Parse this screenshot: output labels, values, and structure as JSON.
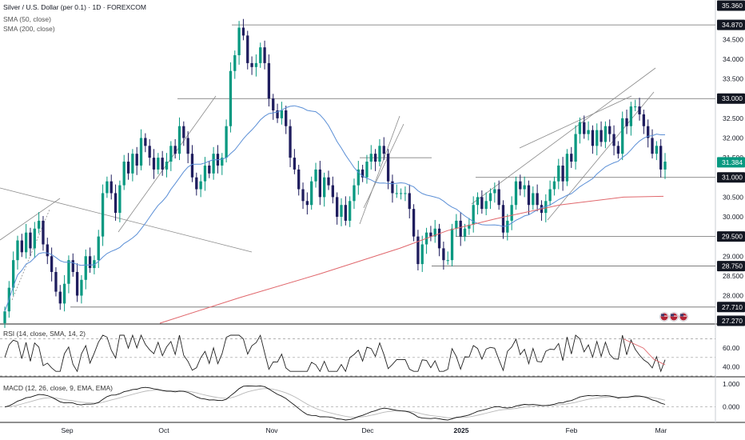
{
  "header": {
    "symbol_line": "Silver / U.S. Dollar (per 0.1) · 1D · FOREXCOM",
    "sma50_label": "SMA (50, close)",
    "sma200_label": "SMA (200, close)"
  },
  "rsi_panel": {
    "label": "RSI (14, close, SMA, 14, 2)",
    "ticks": [
      "60.00",
      "40.00"
    ]
  },
  "macd_panel": {
    "label": "MACD (12, 26, close, 9, EMA, EMA)",
    "ticks": [
      "1.000",
      "0.000"
    ]
  },
  "colors": {
    "up": "#089981",
    "down": "#1f1d5e",
    "sma50": "#5b8fd6",
    "sma200": "#e0676c",
    "last_price_tag": "#089981",
    "trendline": "#8a8a8a",
    "rsi_line": "#222222",
    "rsi_signal": "#e0676c",
    "macd_line": "#111111",
    "macd_signal": "#b8b8b8"
  },
  "icons": [
    "flag-icon",
    "flag-icon",
    "flag-icon"
  ],
  "chart_data": {
    "type": "candlestick",
    "x_ticks": [
      "Sep",
      "Oct",
      "Nov",
      "Dec",
      "2025",
      "Feb",
      "Mar"
    ],
    "y_ticks": [
      "34.500",
      "34.000",
      "33.500",
      "32.500",
      "32.000",
      "31.500",
      "30.500",
      "30.000",
      "29.000",
      "28.500",
      "28.000"
    ],
    "ylim": [
      27.3,
      35.4
    ],
    "price_levels": [
      "35.360",
      "34.870",
      "33.000",
      "31.000",
      "29.500",
      "28.750",
      "27.710",
      "27.270"
    ],
    "last_price": "31.384",
    "ohlc_closes": [
      27.6,
      28.2,
      28.9,
      29.4,
      29.1,
      29.6,
      29.2,
      29.7,
      29.9,
      29.3,
      29.0,
      28.6,
      28.1,
      27.8,
      28.3,
      28.9,
      28.6,
      28.0,
      28.4,
      29.0,
      28.7,
      28.9,
      29.5,
      30.6,
      30.9,
      30.6,
      30.1,
      30.8,
      31.4,
      31.1,
      31.6,
      31.3,
      32.0,
      31.8,
      31.5,
      31.2,
      31.5,
      31.2,
      31.4,
      31.8,
      31.6,
      32.3,
      32.0,
      31.6,
      31.0,
      30.7,
      30.9,
      31.3,
      31.1,
      31.6,
      31.3,
      31.5,
      32.3,
      33.7,
      34.1,
      34.8,
      34.6,
      33.9,
      33.8,
      33.9,
      34.3,
      33.9,
      33.0,
      32.7,
      32.5,
      32.7,
      32.3,
      31.5,
      31.2,
      30.7,
      30.4,
      30.3,
      30.9,
      31.2,
      30.5,
      31.0,
      30.8,
      30.5,
      30.0,
      30.3,
      29.9,
      30.4,
      30.8,
      31.2,
      31.0,
      31.4,
      31.6,
      31.4,
      31.8,
      31.6,
      30.9,
      30.6,
      30.6,
      30.6,
      30.6,
      30.2,
      29.5,
      28.8,
      29.3,
      29.6,
      29.5,
      29.7,
      29.2,
      28.9,
      28.9,
      29.7,
      29.9,
      29.5,
      29.7,
      29.8,
      30.3,
      30.5,
      30.2,
      30.4,
      30.6,
      30.7,
      30.3,
      29.6,
      29.9,
      30.3,
      30.9,
      30.7,
      30.8,
      30.3,
      30.6,
      30.3,
      30.1,
      30.4,
      30.7,
      30.9,
      31.3,
      30.9,
      31.6,
      31.4,
      32.1,
      32.4,
      32.1,
      32.2,
      31.8,
      32.2,
      31.9,
      32.3,
      32.1,
      31.8,
      31.6,
      32.5,
      32.3,
      32.8,
      32.8,
      32.6,
      32.3,
      32.0,
      31.6,
      31.8,
      31.2,
      31.4
    ]
  }
}
